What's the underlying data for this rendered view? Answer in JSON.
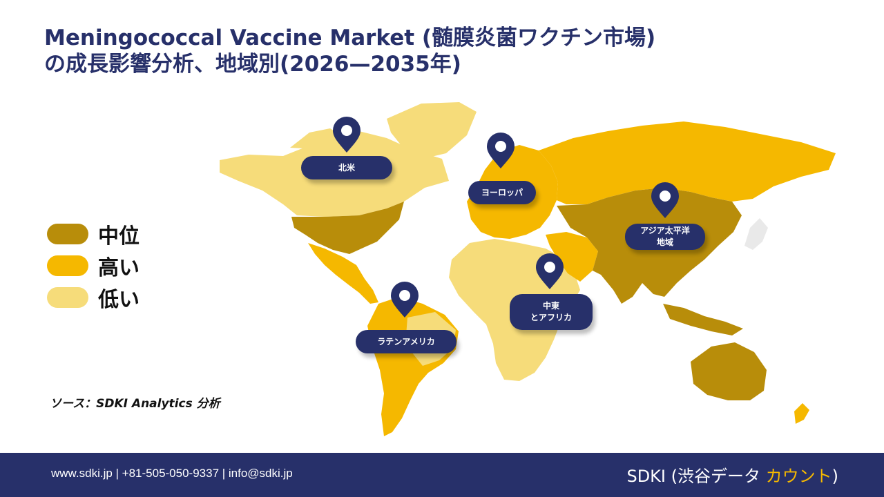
{
  "title": {
    "line1": "Meningococcal Vaccine Market (髄膜炎菌ワクチン市場)",
    "line2": "の成長影響分析、地域別(2026—2035年)"
  },
  "colors": {
    "medium": "#b88d0a",
    "high": "#f5b800",
    "low": "#f6dc7a",
    "navy": "#27306a"
  },
  "legend": [
    {
      "label": "中位",
      "color": "#b88d0a"
    },
    {
      "label": "高い",
      "color": "#f5b800"
    },
    {
      "label": "低い",
      "color": "#f6dc7a"
    }
  ],
  "regions": [
    {
      "name_lines": [
        "北米"
      ],
      "level": "low",
      "icon": "map-pin-icon"
    },
    {
      "name_lines": [
        "ヨーロッパ"
      ],
      "level": "high",
      "icon": "map-pin-icon"
    },
    {
      "name_lines": [
        "アジア太平洋",
        "地域"
      ],
      "level": "medium",
      "icon": "map-pin-icon"
    },
    {
      "name_lines": [
        "中東",
        "とアフリカ"
      ],
      "level": "low",
      "icon": "map-pin-icon"
    },
    {
      "name_lines": [
        "ラテンアメリカ"
      ],
      "level": "high",
      "icon": "map-pin-icon"
    }
  ],
  "source": "ソース：SDKI Analytics 分析",
  "footer": {
    "contact": "www.sdki.jp | +81-505-050-9337 | info@sdki.jp",
    "brand_main": "SDKI (渋谷データ ",
    "brand_accent": "カウント",
    "brand_end": ")"
  }
}
